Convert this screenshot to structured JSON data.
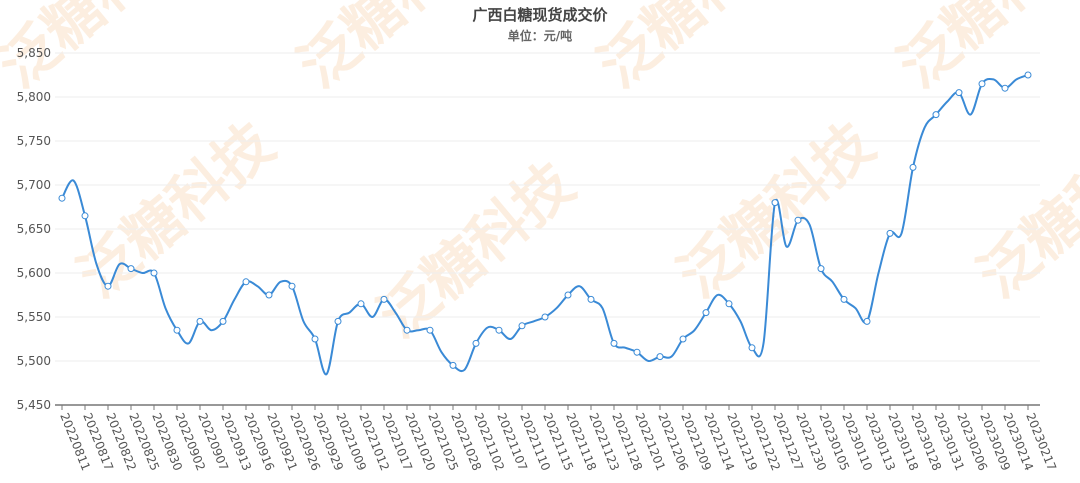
{
  "watermark": "泛糖科技",
  "chart_data": {
    "type": "line",
    "title": "广西白糖现货成交价",
    "subtitle": "单位：元/吨",
    "categories": [
      "20220811",
      null,
      "20220817",
      null,
      "20220822",
      null,
      "20220825",
      null,
      "20220830",
      null,
      "20220902",
      null,
      "20220907",
      null,
      "20220913",
      null,
      "20220916",
      null,
      "20220921",
      null,
      "20220926",
      null,
      "20220929",
      null,
      "20221009",
      null,
      "20221012",
      null,
      "20221017",
      null,
      "20221020",
      null,
      "20221025",
      null,
      "20221028",
      null,
      "20221102",
      null,
      "20221107",
      null,
      "20221110",
      null,
      "20221115",
      null,
      "20221118",
      null,
      "20221123",
      null,
      "20221128",
      null,
      "20221201",
      null,
      "20221206",
      null,
      "20221209",
      null,
      "20221214",
      null,
      "20221219",
      null,
      "20221222",
      null,
      "20221227",
      null,
      "20221230",
      null,
      "20230105",
      null,
      "20230110",
      null,
      "20230113",
      null,
      "20230118",
      null,
      "20230128",
      null,
      "20230131",
      null,
      "20230206",
      null,
      "20230209",
      null,
      "20230214",
      null,
      "20230217"
    ],
    "series": [
      {
        "name": "广西白糖现货成交价",
        "color": "#3a8ad6",
        "values": [
          5685,
          5705,
          5665,
          5610,
          5585,
          5610,
          5605,
          5600,
          5600,
          5560,
          5535,
          5520,
          5545,
          5535,
          5545,
          5570,
          5590,
          5585,
          5575,
          5590,
          5585,
          5545,
          5525,
          5485,
          5545,
          5555,
          5565,
          5550,
          5570,
          5555,
          5535,
          5535,
          5535,
          5510,
          5495,
          5490,
          5520,
          5538,
          5535,
          5525,
          5540,
          5545,
          5550,
          5560,
          5575,
          5585,
          5570,
          5560,
          5520,
          5515,
          5510,
          5500,
          5505,
          5505,
          5525,
          5535,
          5555,
          5575,
          5565,
          5545,
          5515,
          5520,
          5680,
          5630,
          5660,
          5655,
          5605,
          5590,
          5570,
          5560,
          5545,
          5600,
          5645,
          5645,
          5720,
          5765,
          5780,
          5795,
          5805,
          5780,
          5815,
          5820,
          5810,
          5820,
          5825
        ]
      }
    ],
    "ylim": [
      5450,
      5850
    ],
    "yticks": [
      {
        "value": 5450,
        "label": "5,450"
      },
      {
        "value": 5500,
        "label": "5,500"
      },
      {
        "value": 5550,
        "label": "5,550"
      },
      {
        "value": 5600,
        "label": "5,600"
      },
      {
        "value": 5650,
        "label": "5,650"
      },
      {
        "value": 5700,
        "label": "5,700"
      },
      {
        "value": 5750,
        "label": "5,750"
      },
      {
        "value": 5800,
        "label": "5,800"
      },
      {
        "value": 5850,
        "label": "5,850"
      }
    ],
    "grid": true
  }
}
